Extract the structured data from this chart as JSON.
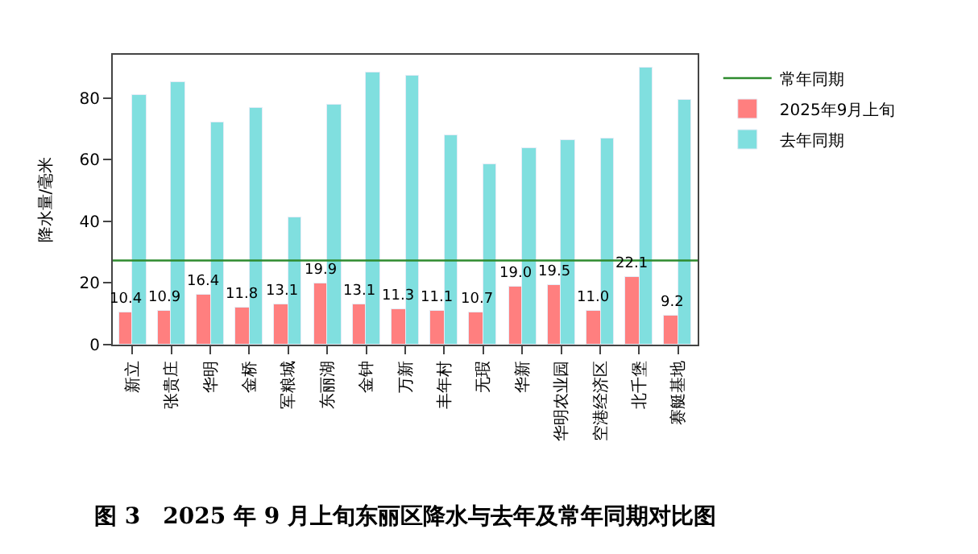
{
  "chart_data": {
    "type": "bar",
    "title": "图 3　2025 年 9 月上旬东丽区降水与去年及常年同期对比图",
    "ylabel": "降水量/毫米",
    "categories": [
      "新立",
      "张贵庄",
      "华明",
      "金桥",
      "军粮城",
      "东丽湖",
      "金钟",
      "万新",
      "丰年村",
      "无瑕",
      "华新",
      "华明农业园",
      "空港经济区",
      "北千堡",
      "赛艇基地"
    ],
    "series": [
      {
        "name": "2025年9月上旬",
        "color": "#ff7f7f",
        "values": [
          10.4,
          10.9,
          16.4,
          11.8,
          13.1,
          19.9,
          13.1,
          11.3,
          11.1,
          10.7,
          19.0,
          19.5,
          11.0,
          22.1,
          9.2
        ],
        "value_labels": [
          "10.4",
          "10.9",
          "16.4",
          "11.8",
          "13.1",
          "19.9",
          "13.1",
          "11.3",
          "11.1",
          "10.7",
          "19.0",
          "19.5",
          "11.0",
          "22.1",
          "9.2"
        ]
      },
      {
        "name": "去年同期",
        "color": "#80dfdf",
        "values": [
          80.8,
          84.9,
          72.1,
          76.9,
          41.1,
          77.8,
          88.4,
          87.0,
          68.1,
          58.7,
          63.5,
          66.5,
          66.8,
          89.6,
          79.5
        ]
      }
    ],
    "ref_lines": [
      {
        "axis": "y",
        "value": 27.3,
        "label": "常年同期",
        "color": "#2e8b2e",
        "line_style": "solid"
      }
    ],
    "ylim": [
      0,
      94
    ],
    "yticks": [
      0,
      20,
      40,
      60,
      80
    ],
    "legend": "right"
  }
}
